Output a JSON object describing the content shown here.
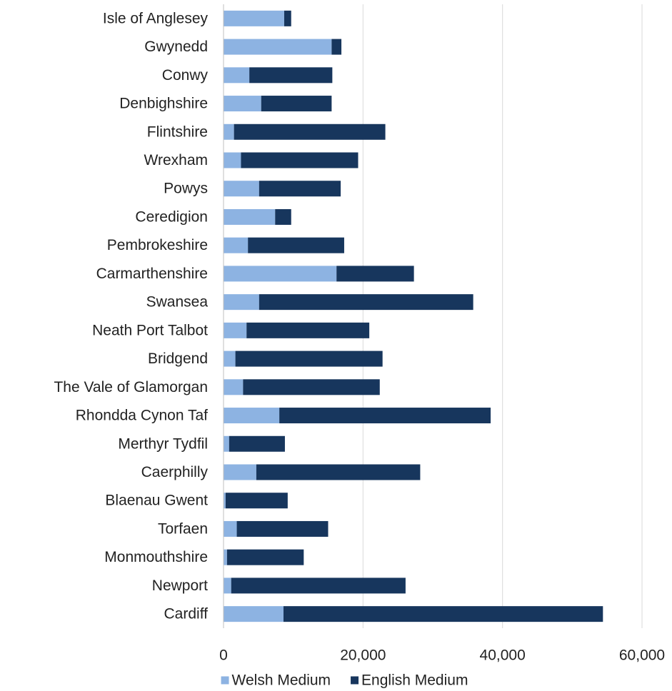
{
  "chart_data": {
    "type": "bar",
    "orientation": "horizontal",
    "stacked": true,
    "categories": [
      "Isle of Anglesey",
      "Gwynedd",
      "Conwy",
      "Denbighshire",
      "Flintshire",
      "Wrexham",
      "Powys",
      "Ceredigion",
      "Pembrokeshire",
      "Carmarthenshire",
      "Swansea",
      "Neath Port Talbot",
      "Bridgend",
      "The Vale of Glamorgan",
      "Rhondda Cynon Taf",
      "Merthyr Tydfil",
      "Caerphilly",
      "Blaenau Gwent",
      "Torfaen",
      "Monmouthshire",
      "Newport",
      "Cardiff"
    ],
    "series": [
      {
        "name": "Welsh Medium",
        "color": "#8db3e2",
        "values": [
          8700,
          15500,
          3700,
          5400,
          1500,
          2500,
          5100,
          7400,
          3500,
          16200,
          5100,
          3300,
          1700,
          2800,
          8000,
          800,
          4700,
          300,
          1900,
          500,
          1100,
          8600
        ]
      },
      {
        "name": "English Medium",
        "color": "#17365d",
        "values": [
          1000,
          1400,
          11900,
          10100,
          21700,
          16800,
          11700,
          2300,
          13800,
          11100,
          30700,
          17600,
          21100,
          19600,
          30300,
          8000,
          23500,
          8900,
          13100,
          11000,
          25000,
          45800
        ]
      }
    ],
    "xlim": [
      0,
      60000
    ],
    "xticks": [
      0,
      20000,
      40000,
      60000
    ],
    "xtick_labels": [
      "0",
      "20,000",
      "40,000",
      "60,000"
    ],
    "grid": true,
    "legend_position": "bottom",
    "title": "",
    "xlabel": "",
    "ylabel": ""
  }
}
